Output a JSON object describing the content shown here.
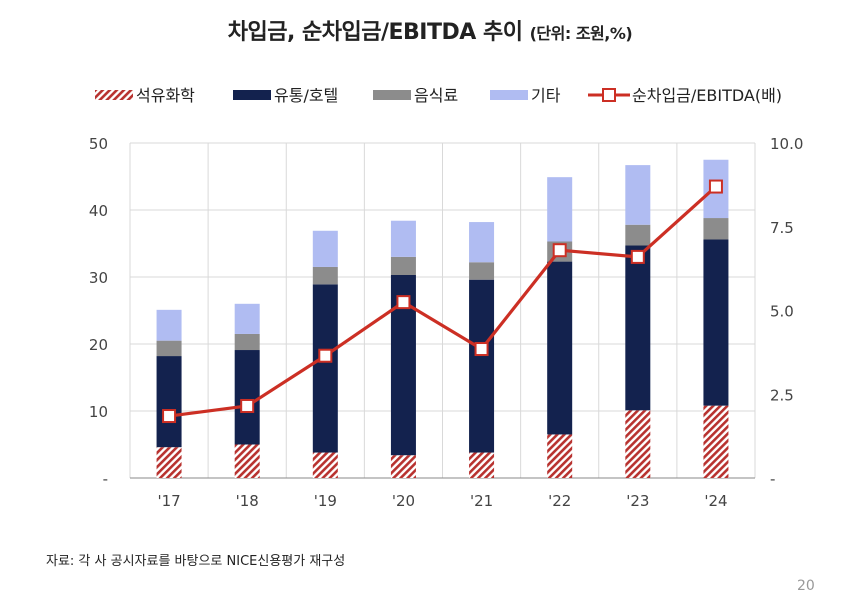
{
  "title": {
    "main": "차입금, 순차입금/EBITDA 추이",
    "unit": "(단위: 조원,%)"
  },
  "source": "자료: 각 사 공시자료를 바탕으로 NICE신용평가 재구성",
  "page_number": "20",
  "colors": {
    "petrochemical": "#b8322f",
    "retail_hotel": "#13224e",
    "food": "#8c8c8c",
    "other": "#b0bcf2",
    "ratio_line": "#cc2f24",
    "ratio_marker_fill": "#ffffff",
    "grid": "#d9d9d9",
    "axis_text": "#444444"
  },
  "chart_data": {
    "type": "bar",
    "stacked": true,
    "categories": [
      "'17",
      "'18",
      "'19",
      "'20",
      "'21",
      "'22",
      "'23",
      "'24"
    ],
    "series": [
      {
        "name": "석유화학",
        "axis": "left",
        "pattern": "hatch",
        "values": [
          4.6,
          5.0,
          3.8,
          3.4,
          3.8,
          6.5,
          10.1,
          10.8
        ]
      },
      {
        "name": "유통/호텔",
        "axis": "left",
        "values": [
          13.6,
          14.1,
          25.1,
          26.9,
          25.8,
          25.8,
          24.6,
          24.8
        ]
      },
      {
        "name": "음식료",
        "axis": "left",
        "values": [
          2.3,
          2.4,
          2.6,
          2.7,
          2.6,
          3.0,
          3.1,
          3.2
        ]
      },
      {
        "name": "기타",
        "axis": "left",
        "values": [
          4.6,
          4.5,
          5.4,
          5.4,
          6.0,
          9.6,
          8.9,
          8.7
        ]
      }
    ],
    "line": {
      "name": "순차입금/EBITDA(배)",
      "axis": "right",
      "values": [
        1.85,
        2.15,
        3.65,
        5.25,
        3.85,
        6.8,
        6.6,
        8.7
      ]
    },
    "y_left": {
      "min": 0,
      "max": 50,
      "ticks": [
        0,
        10,
        20,
        30,
        40,
        50
      ],
      "tick_labels": [
        "-",
        "10",
        "20",
        "30",
        "40",
        "50"
      ]
    },
    "y_right": {
      "min": 0,
      "max": 10,
      "ticks": [
        0,
        2.5,
        5,
        7.5,
        10
      ],
      "tick_labels": [
        "-",
        "2.5",
        "5.0",
        "7.5",
        "10.0"
      ]
    },
    "grid": true,
    "legend_position": "top"
  }
}
